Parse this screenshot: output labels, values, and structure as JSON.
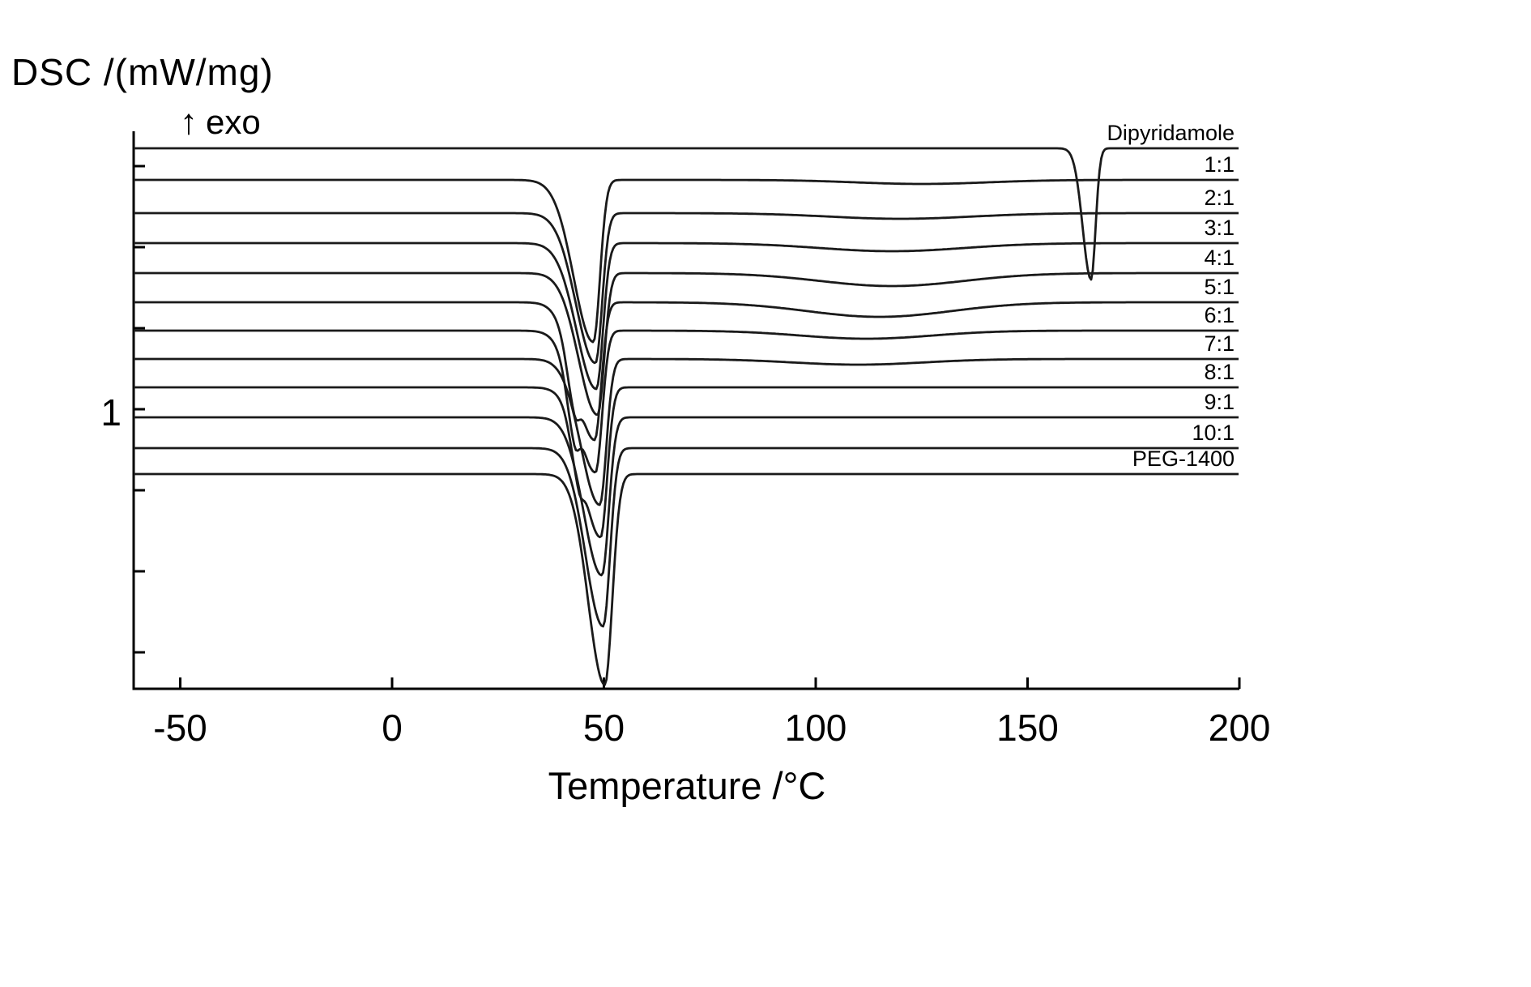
{
  "labels": {
    "y_axis_title": "DSC /(mW/mg)",
    "exo_arrow": "↑",
    "exo_text": "exo",
    "y_scale": "1",
    "x_axis_title": "Temperature /°C"
  },
  "chart_data": {
    "type": "line",
    "title": "",
    "xlabel": "Temperature /°C",
    "ylabel": "DSC /(mW/mg)",
    "exo_direction": "up",
    "endo_direction": "down",
    "x_range": [
      -61,
      200
    ],
    "xticks": [
      -50,
      0,
      50,
      100,
      150,
      200
    ],
    "y_units": 6.8,
    "y_scale_interval_label": "1",
    "grid": false,
    "legend_position": "right-inline",
    "series": [
      {
        "label": "Dipyridamole",
        "baseline": 0.13,
        "peaks": [
          {
            "center": 165,
            "depth": 1.62,
            "width_left": 2.8,
            "width_right": 1.5
          }
        ]
      },
      {
        "label": "1:1",
        "baseline": 0.52,
        "peaks": [
          {
            "center": 47.5,
            "depth": 2.0,
            "width_left": 6.5,
            "width_right": 2.2
          },
          {
            "center": 125,
            "depth": 0.05,
            "width_left": 22,
            "width_right": 22
          }
        ]
      },
      {
        "label": "2:1",
        "baseline": 0.93,
        "peaks": [
          {
            "center": 48.0,
            "depth": 1.85,
            "width_left": 6.5,
            "width_right": 2.2
          },
          {
            "center": 120,
            "depth": 0.07,
            "width_left": 24,
            "width_right": 24
          }
        ]
      },
      {
        "label": "3:1",
        "baseline": 1.3,
        "peaks": [
          {
            "center": 48.2,
            "depth": 1.8,
            "width_left": 6.5,
            "width_right": 2.2
          },
          {
            "center": 118,
            "depth": 0.1,
            "width_left": 24,
            "width_right": 24
          }
        ]
      },
      {
        "label": "4:1",
        "baseline": 1.67,
        "peaks": [
          {
            "center": 48.5,
            "depth": 1.75,
            "width_left": 6.3,
            "width_right": 2.2
          },
          {
            "center": 118,
            "depth": 0.16,
            "width_left": 24,
            "width_right": 24
          }
        ]
      },
      {
        "label": "5:1",
        "baseline": 2.03,
        "peaks": [
          {
            "center": 47.8,
            "depth": 1.7,
            "width_left": 6.2,
            "width_right": 2.2
          },
          {
            "center": 43,
            "depth": 0.45,
            "width_left": 2.5,
            "width_right": 1.5
          },
          {
            "center": 115,
            "depth": 0.18,
            "width_left": 24,
            "width_right": 24
          }
        ]
      },
      {
        "label": "6:1",
        "baseline": 2.38,
        "peaks": [
          {
            "center": 48.0,
            "depth": 1.75,
            "width_left": 6.2,
            "width_right": 2.2
          },
          {
            "center": 43,
            "depth": 0.5,
            "width_left": 2.5,
            "width_right": 1.5
          },
          {
            "center": 112,
            "depth": 0.1,
            "width_left": 22,
            "width_right": 22
          }
        ]
      },
      {
        "label": "7:1",
        "baseline": 2.73,
        "peaks": [
          {
            "center": 49.0,
            "depth": 1.8,
            "width_left": 6.2,
            "width_right": 2.2
          },
          {
            "center": 110,
            "depth": 0.07,
            "width_left": 22,
            "width_right": 22
          }
        ]
      },
      {
        "label": "8:1",
        "baseline": 3.08,
        "peaks": [
          {
            "center": 49.2,
            "depth": 1.85,
            "width_left": 6.0,
            "width_right": 2.2
          },
          {
            "center": 44,
            "depth": 0.4,
            "width_left": 2.5,
            "width_right": 1.5
          }
        ]
      },
      {
        "label": "9:1",
        "baseline": 3.45,
        "peaks": [
          {
            "center": 49.5,
            "depth": 1.95,
            "width_left": 6.0,
            "width_right": 2.3
          }
        ]
      },
      {
        "label": "10:1",
        "baseline": 3.83,
        "peaks": [
          {
            "center": 49.8,
            "depth": 2.2,
            "width_left": 5.8,
            "width_right": 2.3
          }
        ]
      },
      {
        "label": "PEG-1400",
        "baseline": 4.15,
        "peaks": [
          {
            "center": 50.2,
            "depth": 2.6,
            "width_left": 5.5,
            "width_right": 2.5
          }
        ]
      }
    ]
  }
}
